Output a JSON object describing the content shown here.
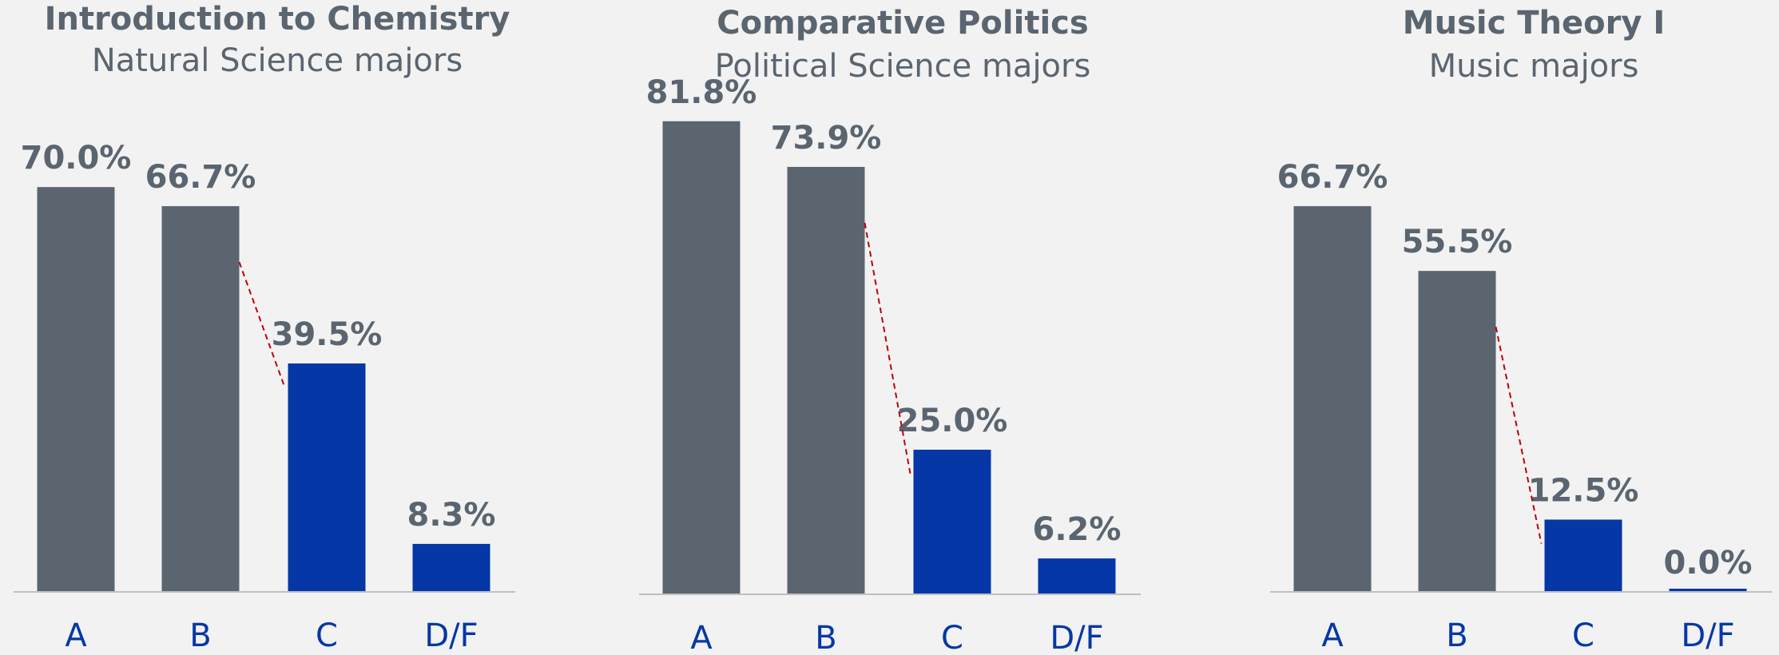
{
  "chart_data": [
    {
      "type": "bar",
      "title": "Introduction to Chemistry",
      "subtitle": "Natural Science majors",
      "categories": [
        "A",
        "B",
        "C",
        "D/F"
      ],
      "values": [
        70.0,
        66.7,
        39.5,
        8.3
      ],
      "value_labels": [
        "70.0%",
        "66.7%",
        "39.5%",
        "8.3%"
      ],
      "colors": [
        "#5a6570",
        "#5a6570",
        "#0537a6",
        "#0537a6"
      ],
      "ylim": [
        0,
        100
      ]
    },
    {
      "type": "bar",
      "title": "Comparative Politics",
      "subtitle": "Political Science majors",
      "categories": [
        "A",
        "B",
        "C",
        "D/F"
      ],
      "values": [
        81.8,
        73.9,
        25.0,
        6.2
      ],
      "value_labels": [
        "81.8%",
        "73.9%",
        "25.0%",
        "6.2%"
      ],
      "colors": [
        "#5a6570",
        "#5a6570",
        "#0537a6",
        "#0537a6"
      ],
      "ylim": [
        0,
        100
      ]
    },
    {
      "type": "bar",
      "title": "Music Theory I",
      "subtitle": "Music majors",
      "categories": [
        "A",
        "B",
        "C",
        "D/F"
      ],
      "values": [
        66.7,
        55.5,
        12.5,
        0.0
      ],
      "value_labels": [
        "66.7%",
        "55.5%",
        "12.5%",
        "0.0%"
      ],
      "colors": [
        "#5a6570",
        "#5a6570",
        "#0537a6",
        "#0537a6"
      ],
      "ylim": [
        0,
        100
      ]
    }
  ]
}
